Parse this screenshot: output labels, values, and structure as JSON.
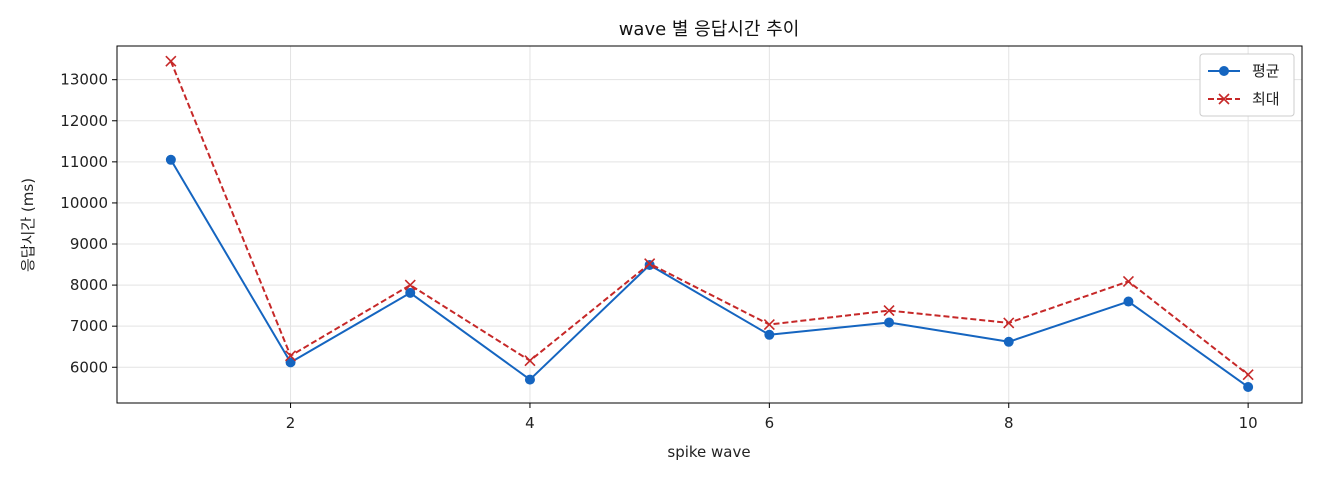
{
  "chart_data": {
    "type": "line",
    "title": "wave 별 응답시간 추이",
    "xlabel": "spike wave",
    "ylabel": "응답시간 (ms)",
    "x": [
      1,
      2,
      3,
      4,
      5,
      6,
      7,
      8,
      9,
      10
    ],
    "xlim": [
      0.55,
      10.45
    ],
    "ylim": [
      5130,
      13820
    ],
    "xticks": [
      2,
      4,
      6,
      8,
      10
    ],
    "yticks": [
      6000,
      7000,
      8000,
      9000,
      10000,
      11000,
      12000,
      13000
    ],
    "grid": true,
    "legend_position": "top-right",
    "series": [
      {
        "name": "평균",
        "values": [
          11050,
          6120,
          7810,
          5700,
          8490,
          6790,
          7090,
          6620,
          7600,
          5520
        ],
        "color": "#1565c0",
        "marker": "circle",
        "line_style": "solid"
      },
      {
        "name": "최대",
        "values": [
          13450,
          6280,
          8000,
          6160,
          8520,
          7040,
          7380,
          7080,
          8090,
          5820
        ],
        "color": "#c62828",
        "marker": "x",
        "line_style": "dashed"
      }
    ]
  }
}
